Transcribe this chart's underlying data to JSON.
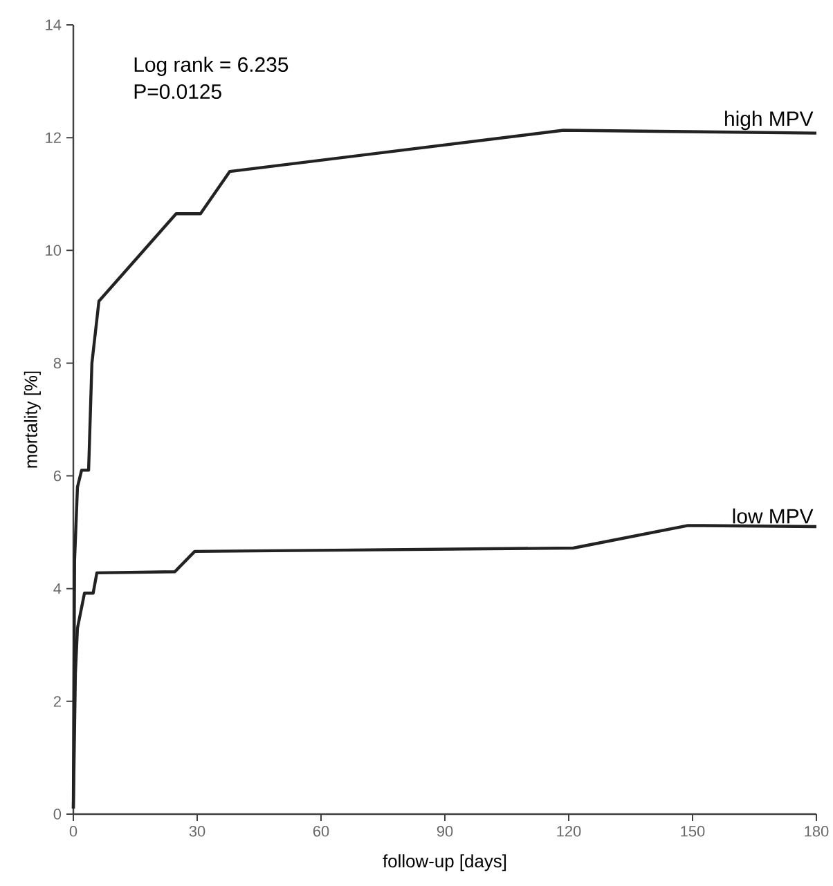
{
  "chart_data": {
    "type": "line",
    "xlabel": "follow-up [days]",
    "ylabel": "mortality [%]",
    "annotations": [
      "Log rank = 6.235",
      "P=0.0125"
    ],
    "xlim": [
      0,
      180
    ],
    "ylim": [
      0,
      14
    ],
    "xticks": [
      0,
      30,
      60,
      90,
      120,
      150,
      180
    ],
    "yticks": [
      0,
      2,
      4,
      6,
      8,
      10,
      12,
      14
    ],
    "grid": false,
    "legend": false,
    "marker": "none",
    "line_style": "solid",
    "series": [
      {
        "name": "high MPV",
        "color": "#222222",
        "x": [
          0,
          0.3,
          1,
          2,
          3.7,
          4.5,
          6.2,
          24.9,
          30.8,
          37.9,
          118.7,
          180
        ],
        "values": [
          0.1,
          4.5,
          5.8,
          6.1,
          6.1,
          8,
          9.1,
          10.65,
          10.65,
          11.4,
          12.13,
          12.08
        ]
      },
      {
        "name": "low MPV",
        "color": "#222222",
        "x": [
          0,
          0.5,
          1,
          2.7,
          4.8,
          5.7,
          24.6,
          29.4,
          121.1,
          148.9,
          180
        ],
        "values": [
          0.1,
          2.5,
          3.3,
          3.92,
          3.92,
          4.28,
          4.3,
          4.66,
          4.72,
          5.12,
          5.1
        ]
      }
    ]
  }
}
